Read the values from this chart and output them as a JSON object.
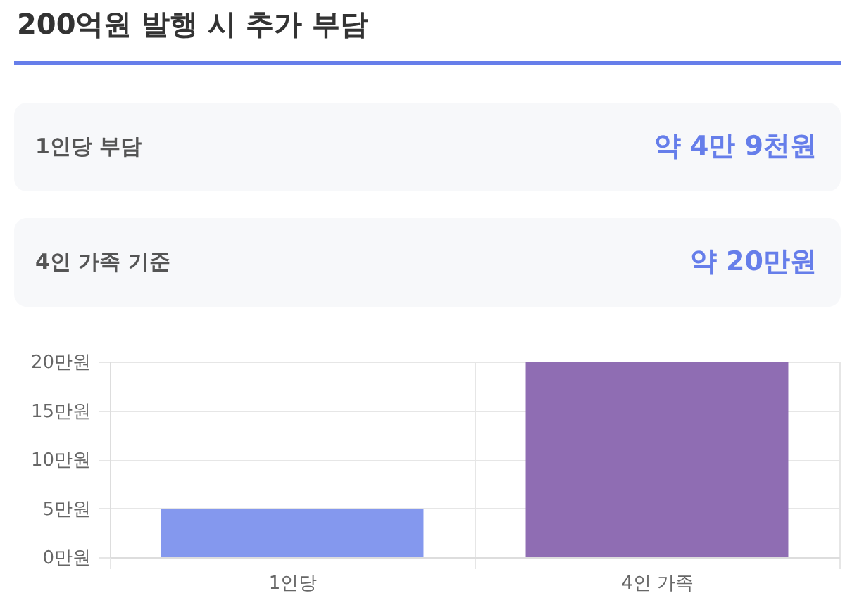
{
  "chart_data": [
    {
      "type": "other",
      "title": "200억원 발행 시 추가 부담",
      "annotations": [
        "1인당 부담",
        "약 4만 9천원",
        "4인 가족 기준",
        "약 20만원"
      ]
    },
    {
      "type": "bar",
      "categories": [
        "1인당",
        "4인 가족"
      ],
      "values": [
        4.9,
        20
      ],
      "colors": [
        "#8498ee",
        "#8f6db3"
      ],
      "ylim": [
        0,
        20
      ],
      "yticks": [
        {
          "value": 0,
          "label": "0만원"
        },
        {
          "value": 5,
          "label": "5만원"
        },
        {
          "value": 10,
          "label": "10만원"
        },
        {
          "value": 15,
          "label": "15만원"
        },
        {
          "value": 20,
          "label": "20만원"
        }
      ],
      "grid": true
    }
  ]
}
